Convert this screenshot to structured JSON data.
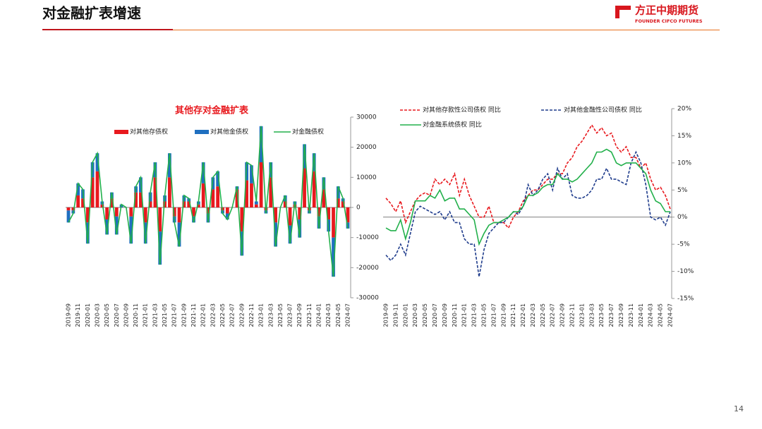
{
  "page": {
    "title": "对金融扩表增速",
    "logo": "方正中期期货",
    "logo_sub": "FOUNDER CIFCO FUTURES",
    "page_number": "14"
  },
  "chart_data": [
    {
      "type": "combo",
      "title": "其他存对金融扩表",
      "categories": [
        "2019-09",
        null,
        "2019-11",
        null,
        "2020-01",
        null,
        "2020-03",
        null,
        "2020-05",
        null,
        "2020-07",
        null,
        "2020-09",
        null,
        "2020-11",
        null,
        "2021-01",
        null,
        "2021-03",
        null,
        "2021-05",
        null,
        "2021-07",
        null,
        "2021-09",
        null,
        "2021-11",
        null,
        "2022-01",
        null,
        "2022-03",
        null,
        "2022-05",
        null,
        "2022-07",
        null,
        "2022-09",
        null,
        "2022-11",
        null,
        "2023-01",
        null,
        "2023-03",
        null,
        "2023-05",
        null,
        "2023-07",
        null,
        "2023-09",
        null,
        "2023-11",
        null,
        "2024-01",
        null,
        "2024-03",
        null,
        "2024-05",
        null,
        "2024-07"
      ],
      "series": [
        {
          "name": "对其他存债权",
          "type": "bar",
          "color": "#e8191e",
          "values": [
            -1000,
            -1000,
            4000,
            3000,
            -5000,
            10000,
            12000,
            1000,
            -4000,
            3000,
            -3000,
            0,
            0,
            -3000,
            5000,
            5000,
            -5000,
            2000,
            10000,
            -8000,
            2000,
            10000,
            -3000,
            -5000,
            2000,
            2000,
            -3000,
            1000,
            8000,
            -2000,
            6000,
            7000,
            -1000,
            -2000,
            0,
            6000,
            -8000,
            9000,
            8000,
            1000,
            15000,
            -1000,
            10000,
            -5000,
            0,
            2000,
            -6000,
            1000,
            -4000,
            13000,
            -1000,
            12000,
            -3000,
            6000,
            -4000,
            -10000,
            3000,
            2000,
            -5000
          ]
        },
        {
          "name": "对其他金债权",
          "type": "bar",
          "color": "#1f6fc0",
          "values": [
            -4000,
            -1000,
            4000,
            3000,
            -7000,
            5000,
            6000,
            1000,
            -5000,
            2000,
            -6000,
            1000,
            0,
            -9000,
            2000,
            5000,
            -7000,
            3000,
            5000,
            -11000,
            2000,
            8000,
            -2000,
            -8000,
            2000,
            1000,
            -2000,
            1000,
            7000,
            -3000,
            4000,
            5000,
            -1000,
            -2000,
            0,
            1000,
            -8000,
            6000,
            6000,
            1000,
            12000,
            -1000,
            5000,
            -8000,
            0,
            2000,
            -6000,
            1000,
            -6000,
            8000,
            -1000,
            6000,
            -4000,
            4000,
            -4000,
            -13000,
            4000,
            1000,
            -2000
          ]
        },
        {
          "name": "对金融债权",
          "type": "line",
          "color": "#22b04b",
          "values": [
            -5000,
            -2000,
            8000,
            6000,
            -12000,
            15000,
            18000,
            2000,
            -9000,
            5000,
            -9000,
            1000,
            0,
            -12000,
            7000,
            10000,
            -12000,
            5000,
            15000,
            -19000,
            4000,
            18000,
            -5000,
            -13000,
            4000,
            3000,
            -5000,
            2000,
            15000,
            -5000,
            10000,
            12000,
            -2000,
            -4000,
            0,
            7000,
            -16000,
            15000,
            14000,
            2000,
            27000,
            -2000,
            15000,
            -13000,
            0,
            4000,
            -12000,
            2000,
            -10000,
            21000,
            -2000,
            18000,
            -7000,
            10000,
            -8000,
            -23000,
            7000,
            3000,
            -7000
          ]
        }
      ],
      "ylim": [
        -30000,
        30000
      ],
      "yticks": [
        -30000,
        -20000,
        -10000,
        0,
        10000,
        20000,
        30000
      ]
    },
    {
      "type": "line",
      "categories": [
        "2019-09",
        null,
        "2019-11",
        null,
        "2020-01",
        null,
        "2020-03",
        null,
        "2020-05",
        null,
        "2020-07",
        null,
        "2020-09",
        null,
        "2020-11",
        null,
        "2021-01",
        null,
        "2021-03",
        null,
        "2021-05",
        null,
        "2021-07",
        null,
        "2021-09",
        null,
        "2021-11",
        null,
        "2022-01",
        null,
        "2022-03",
        null,
        "2022-05",
        null,
        "2022-07",
        null,
        "2022-09",
        null,
        "2022-11",
        null,
        "2023-01",
        null,
        "2023-03",
        null,
        "2023-05",
        null,
        "2023-07",
        null,
        "2023-09",
        null,
        "2023-11",
        null,
        "2024-01",
        null,
        "2024-03",
        null,
        "2024-05",
        null,
        "2024-07"
      ],
      "series": [
        {
          "name": "对其他存款性公司债权 同比",
          "type": "line",
          "dash": true,
          "color": "#e8191e",
          "values": [
            3.5,
            2.5,
            1,
            3,
            -1,
            1,
            3,
            4,
            4.5,
            4,
            7,
            6,
            7,
            6,
            8,
            4,
            7,
            4,
            2,
            0,
            0,
            2,
            -1,
            -1,
            -1,
            -2,
            0,
            1,
            3,
            4,
            5,
            5,
            6,
            7,
            7,
            8,
            8,
            10,
            11,
            13,
            14,
            15.5,
            17,
            15.5,
            16.5,
            15,
            15.5,
            13,
            12,
            13,
            11,
            11,
            9,
            10,
            7,
            5,
            5.5,
            4,
            1.5
          ]
        },
        {
          "name": "对其他金融性公司债权 同比",
          "type": "line",
          "dash": true,
          "color": "#1f3c8c",
          "values": [
            -7,
            -8,
            -7,
            -5,
            -7,
            -3,
            1,
            2,
            1.5,
            1,
            0.5,
            1,
            -0.5,
            1,
            -1,
            -1,
            -4,
            -5,
            -5,
            -11,
            -6,
            -3,
            -2,
            -1,
            -1,
            0,
            1,
            0.5,
            2,
            6,
            4,
            5,
            7,
            8,
            5,
            9,
            7,
            8,
            4,
            3.5,
            3.5,
            4,
            5,
            7,
            7,
            9,
            7,
            7,
            6.5,
            6,
            10,
            12,
            10,
            6,
            0,
            -0.5,
            0,
            -1.5,
            1
          ]
        },
        {
          "name": "对金融系统债权 同比",
          "type": "line",
          "dash": false,
          "color": "#22b04b",
          "values": [
            -2,
            -2.5,
            -2.5,
            -0.5,
            -4,
            -1,
            3,
            3,
            3,
            4,
            3.5,
            5,
            3,
            3.5,
            3.5,
            1.5,
            1.5,
            0.5,
            -0.5,
            -5,
            -3,
            -1.5,
            -1,
            -1,
            -0.5,
            0,
            1,
            1,
            2,
            4,
            4,
            4.5,
            5.5,
            6,
            6,
            8,
            7,
            7,
            6.5,
            7,
            8,
            9,
            10,
            12,
            12,
            12.5,
            12,
            10,
            9.5,
            10,
            10,
            10,
            9,
            8,
            5,
            3,
            2.5,
            1,
            1
          ]
        }
      ],
      "ylim": [
        -15,
        20
      ],
      "yticks": [
        {
          "value": -15,
          "label": "-15%"
        },
        {
          "value": -10,
          "label": "-10%"
        },
        {
          "value": -5,
          "label": "-5%"
        },
        {
          "value": 0,
          "label": "0%"
        },
        {
          "value": 5,
          "label": "5%"
        },
        {
          "value": 10,
          "label": "10%"
        },
        {
          "value": 15,
          "label": "15%"
        },
        {
          "value": 20,
          "label": "20%"
        }
      ]
    }
  ]
}
